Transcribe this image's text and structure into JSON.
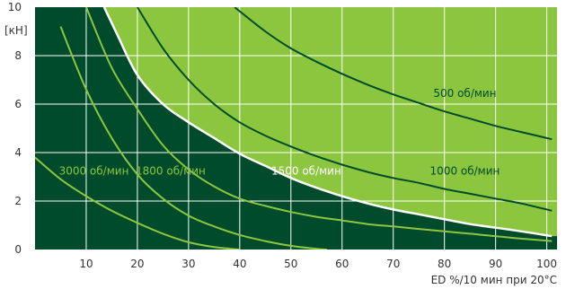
{
  "chart_data": {
    "type": "line",
    "title": "",
    "xlabel": "ED %/10 мин при 20°C",
    "ylabel": "[кН]",
    "xlim": [
      0,
      102
    ],
    "ylim": [
      0,
      10
    ],
    "x_ticks": [
      10,
      20,
      30,
      40,
      50,
      60,
      70,
      80,
      90,
      100
    ],
    "y_ticks": [
      0,
      2,
      4,
      6,
      8,
      10
    ],
    "grid": true,
    "colors": {
      "dark_region": "#004b2b",
      "light_region": "#8cc63f",
      "curve_on_dark": "#8cc63f",
      "curve_on_light": "#004b2b",
      "boundary": "#ffffff",
      "grid": "#ffffff"
    },
    "series": [
      {
        "name": "500 об/мин",
        "label_color": "dark",
        "x": [
          39,
          45,
          50,
          55,
          60,
          65,
          70,
          75,
          80,
          85,
          90,
          95,
          101
        ],
        "y": [
          10,
          9.0,
          8.3,
          7.75,
          7.25,
          6.8,
          6.4,
          6.05,
          5.7,
          5.4,
          5.1,
          4.85,
          4.55
        ]
      },
      {
        "name": "1000 об/мин",
        "label_color": "dark",
        "x": [
          20,
          25,
          30,
          35,
          40,
          45,
          50,
          55,
          60,
          65,
          70,
          75,
          80,
          85,
          90,
          95,
          101
        ],
        "y": [
          10,
          8.3,
          7.0,
          6.0,
          5.25,
          4.7,
          4.25,
          3.85,
          3.5,
          3.2,
          2.95,
          2.75,
          2.5,
          2.3,
          2.1,
          1.9,
          1.6
        ]
      },
      {
        "name": "1500 об/мин",
        "label_color": "white",
        "is_boundary": true,
        "x": [
          13.5,
          16,
          20,
          25,
          30,
          35,
          40,
          45,
          50,
          55,
          60,
          65,
          70,
          75,
          80,
          85,
          90,
          95,
          101
        ],
        "y": [
          10,
          8.9,
          7.2,
          6.0,
          5.25,
          4.6,
          3.95,
          3.45,
          2.95,
          2.55,
          2.2,
          1.9,
          1.65,
          1.45,
          1.25,
          1.05,
          0.9,
          0.75,
          0.55
        ]
      },
      {
        "name": "1800 об/мин",
        "label_color": "light",
        "x": [
          10,
          15,
          20,
          25,
          30,
          35,
          40,
          45,
          50,
          55,
          60,
          65,
          70,
          75,
          80,
          85,
          90,
          95,
          101
        ],
        "y": [
          10,
          7.5,
          5.8,
          4.3,
          3.3,
          2.6,
          2.1,
          1.8,
          1.55,
          1.35,
          1.2,
          1.05,
          0.95,
          0.85,
          0.75,
          0.65,
          0.55,
          0.45,
          0.35
        ]
      },
      {
        "name": "3000 об/мин",
        "label_color": "light",
        "x": [
          5,
          10,
          15,
          20,
          25,
          30,
          35,
          40,
          45,
          50,
          55,
          57
        ],
        "y": [
          9.2,
          6.6,
          4.6,
          3.1,
          2.1,
          1.4,
          0.95,
          0.6,
          0.35,
          0.15,
          0.03,
          0
        ]
      },
      {
        "name": "",
        "label_color": "light",
        "x": [
          0,
          5,
          10,
          15,
          20,
          25,
          30,
          35,
          40
        ],
        "y": [
          3.8,
          2.9,
          2.2,
          1.6,
          1.1,
          0.65,
          0.3,
          0.1,
          0
        ]
      }
    ],
    "annotations": [
      {
        "text": "500 об/мин",
        "x": 84,
        "y": 6.3,
        "color": "dark"
      },
      {
        "text": "1000 об/мин",
        "x": 84,
        "y": 3.1,
        "color": "dark"
      },
      {
        "text": "1500 об/мин",
        "x": 53,
        "y": 3.1,
        "color": "white"
      },
      {
        "text": "1800 об/мин",
        "x": 26.5,
        "y": 3.1,
        "color": "light"
      },
      {
        "text": "3000 об/мин",
        "x": 11.5,
        "y": 3.1,
        "color": "light"
      }
    ]
  }
}
